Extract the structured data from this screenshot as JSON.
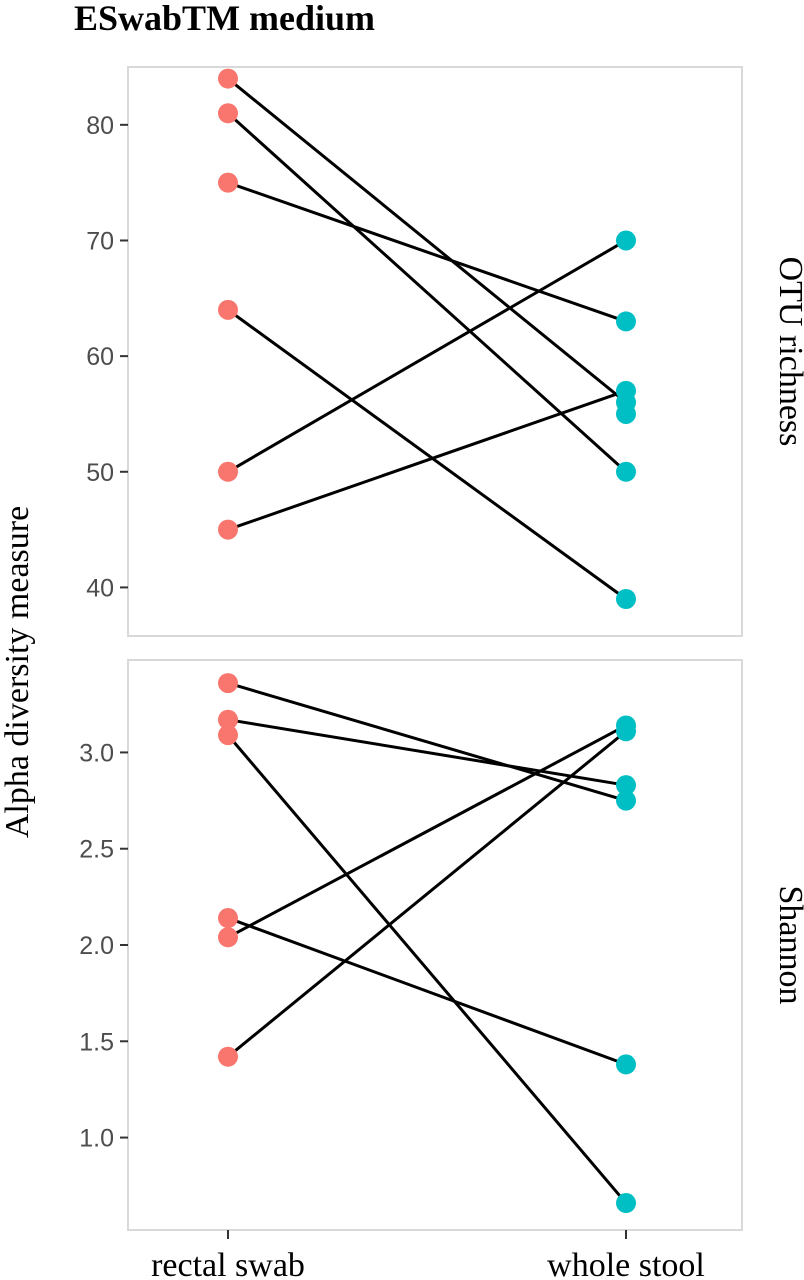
{
  "chart_data": {
    "type": "scatter",
    "title": "ESwabTM medium",
    "ylabel": "Alpha diversity measure",
    "categories": [
      "rectal swab",
      "whole stool"
    ],
    "colors": {
      "rectal swab": "#F8766D",
      "whole stool": "#00BFC4"
    },
    "grid": false,
    "legend": "none",
    "panels": [
      {
        "strip": "OTU richness",
        "ylim": [
          35.8,
          85.0
        ],
        "yticks": [
          40,
          50,
          60,
          70,
          80
        ],
        "ytick_labels": [
          "40",
          "50",
          "60",
          "70",
          "80"
        ],
        "pairs": [
          {
            "rectal swab": 84,
            "whole stool": 56
          },
          {
            "rectal swab": 81,
            "whole stool": 50
          },
          {
            "rectal swab": 75,
            "whole stool": 63
          },
          {
            "rectal swab": 64,
            "whole stool": 39
          },
          {
            "rectal swab": 50,
            "whole stool": 70
          },
          {
            "rectal swab": 45,
            "whole stool": 57
          }
        ],
        "extra_points": [
          {
            "category": "whole stool",
            "value": 55
          }
        ]
      },
      {
        "strip": "Shannon",
        "ylim": [
          0.52,
          3.48
        ],
        "yticks": [
          1.0,
          1.5,
          2.0,
          2.5,
          3.0
        ],
        "ytick_labels": [
          "1.0",
          "1.5",
          "2.0",
          "2.5",
          "3.0"
        ],
        "pairs": [
          {
            "rectal swab": 3.36,
            "whole stool": 2.75
          },
          {
            "rectal swab": 3.17,
            "whole stool": 2.83
          },
          {
            "rectal swab": 3.09,
            "whole stool": 0.66
          },
          {
            "rectal swab": 2.14,
            "whole stool": 1.38
          },
          {
            "rectal swab": 2.04,
            "whole stool": 3.14
          },
          {
            "rectal swab": 1.42,
            "whole stool": 3.11
          }
        ],
        "extra_points": []
      }
    ]
  }
}
